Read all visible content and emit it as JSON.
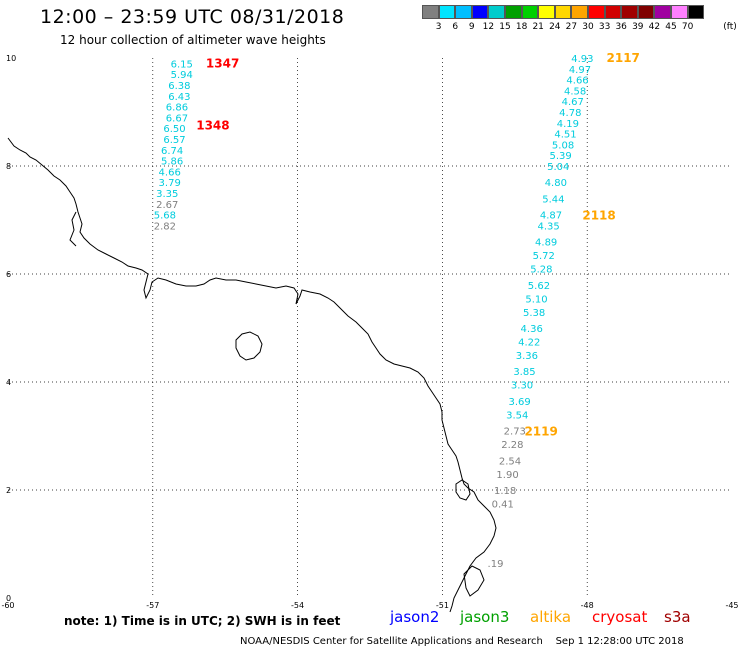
{
  "header": {
    "title": "12:00 – 23:59 UTC 08/31/2018",
    "subtitle": "12 hour collection of altimeter wave heights"
  },
  "colorbar": {
    "labels": [
      "3",
      "6",
      "9",
      "12",
      "15",
      "18",
      "21",
      "24",
      "27",
      "30",
      "33",
      "36",
      "39",
      "42",
      "45",
      "70"
    ],
    "unit": "(ft)",
    "colors": [
      "#808080",
      "#00e5ff",
      "#00bfff",
      "#0000ff",
      "#00cccc",
      "#00a000",
      "#00d000",
      "#ffff00",
      "#ffd700",
      "#ffa500",
      "#ff0000",
      "#d00000",
      "#a00000",
      "#800000",
      "#a000a0",
      "#ff80ff",
      "#000000"
    ]
  },
  "map": {
    "lon_ticks": [
      "-60",
      "-57",
      "-54",
      "-51",
      "-48",
      "-45"
    ],
    "lat_ticks": [
      "0",
      "2",
      "4",
      "6",
      "8",
      "10"
    ],
    "lon_range": [
      -60,
      -45
    ],
    "lat_range": [
      0,
      10
    ]
  },
  "tracks": [
    {
      "labels": [
        {
          "text": "1347",
          "lon": -55.9,
          "lat": 9.9
        },
        {
          "text": "1348",
          "lon": -56.1,
          "lat": 8.75
        }
      ],
      "label_color": "#ff0000",
      "points": [
        {
          "v": "6.15",
          "lon": -56.4,
          "lat": 9.9,
          "c": "#00ccdd"
        },
        {
          "v": "5.94",
          "lon": -56.4,
          "lat": 9.7,
          "c": "#00ccdd"
        },
        {
          "v": "6.38",
          "lon": -56.45,
          "lat": 9.5,
          "c": "#00ccdd"
        },
        {
          "v": "6.43",
          "lon": -56.45,
          "lat": 9.3,
          "c": "#00ccdd"
        },
        {
          "v": "6.86",
          "lon": -56.5,
          "lat": 9.1,
          "c": "#00ccdd"
        },
        {
          "v": "6.67",
          "lon": -56.5,
          "lat": 8.9,
          "c": "#00ccdd"
        },
        {
          "v": "6.50",
          "lon": -56.55,
          "lat": 8.7,
          "c": "#00ccdd"
        },
        {
          "v": "6.57",
          "lon": -56.55,
          "lat": 8.5,
          "c": "#00ccdd"
        },
        {
          "v": "6.74",
          "lon": -56.6,
          "lat": 8.3,
          "c": "#00ccdd"
        },
        {
          "v": "5.86",
          "lon": -56.6,
          "lat": 8.1,
          "c": "#00ccdd"
        },
        {
          "v": "4.66",
          "lon": -56.65,
          "lat": 7.9,
          "c": "#00ccdd"
        },
        {
          "v": "3.79",
          "lon": -56.65,
          "lat": 7.7,
          "c": "#00ccdd"
        },
        {
          "v": "3.35",
          "lon": -56.7,
          "lat": 7.5,
          "c": "#00ccdd"
        },
        {
          "v": "2.67",
          "lon": -56.7,
          "lat": 7.3,
          "c": "#808080"
        },
        {
          "v": "5.68",
          "lon": -56.75,
          "lat": 7.1,
          "c": "#00ccdd"
        },
        {
          "v": "2.82",
          "lon": -56.75,
          "lat": 6.9,
          "c": "#808080"
        }
      ]
    },
    {
      "labels": [
        {
          "text": "2117",
          "lon": -47.6,
          "lat": 10.0
        },
        {
          "text": "2118",
          "lon": -48.1,
          "lat": 7.08
        },
        {
          "text": "2119",
          "lon": -49.3,
          "lat": 3.08
        }
      ],
      "label_color": "#ffa500",
      "points": [
        {
          "v": "4.93",
          "lon": -48.1,
          "lat": 10.0,
          "c": "#00ccdd"
        },
        {
          "v": "4.97",
          "lon": -48.15,
          "lat": 9.8,
          "c": "#00ccdd"
        },
        {
          "v": "4.66",
          "lon": -48.2,
          "lat": 9.6,
          "c": "#00ccdd"
        },
        {
          "v": "4.58",
          "lon": -48.25,
          "lat": 9.4,
          "c": "#00ccdd"
        },
        {
          "v": "4.67",
          "lon": -48.3,
          "lat": 9.2,
          "c": "#00ccdd"
        },
        {
          "v": "4.78",
          "lon": -48.35,
          "lat": 9.0,
          "c": "#00ccdd"
        },
        {
          "v": "4.19",
          "lon": -48.4,
          "lat": 8.8,
          "c": "#00ccdd"
        },
        {
          "v": "4.51",
          "lon": -48.45,
          "lat": 8.6,
          "c": "#00ccdd"
        },
        {
          "v": "5.08",
          "lon": -48.5,
          "lat": 8.4,
          "c": "#00ccdd"
        },
        {
          "v": "5.39",
          "lon": -48.55,
          "lat": 8.2,
          "c": "#00ccdd"
        },
        {
          "v": "5.04",
          "lon": -48.6,
          "lat": 8.0,
          "c": "#00ccdd"
        },
        {
          "v": "4.80",
          "lon": -48.65,
          "lat": 7.7,
          "c": "#00ccdd"
        },
        {
          "v": "5.44",
          "lon": -48.7,
          "lat": 7.4,
          "c": "#00ccdd"
        },
        {
          "v": "4.87",
          "lon": -48.75,
          "lat": 7.1,
          "c": "#00ccdd"
        },
        {
          "v": "4.35",
          "lon": -48.8,
          "lat": 6.9,
          "c": "#00ccdd"
        },
        {
          "v": "4.89",
          "lon": -48.85,
          "lat": 6.6,
          "c": "#00ccdd"
        },
        {
          "v": "5.72",
          "lon": -48.9,
          "lat": 6.35,
          "c": "#00ccdd"
        },
        {
          "v": "5.28",
          "lon": -48.95,
          "lat": 6.1,
          "c": "#00ccdd"
        },
        {
          "v": "5.62",
          "lon": -49.0,
          "lat": 5.8,
          "c": "#00ccdd"
        },
        {
          "v": "5.10",
          "lon": -49.05,
          "lat": 5.55,
          "c": "#00ccdd"
        },
        {
          "v": "5.38",
          "lon": -49.1,
          "lat": 5.3,
          "c": "#00ccdd"
        },
        {
          "v": "4.36",
          "lon": -49.15,
          "lat": 5.0,
          "c": "#00ccdd"
        },
        {
          "v": "4.22",
          "lon": -49.2,
          "lat": 4.75,
          "c": "#00ccdd"
        },
        {
          "v": "3.36",
          "lon": -49.25,
          "lat": 4.5,
          "c": "#00ccdd"
        },
        {
          "v": "3.85",
          "lon": -49.3,
          "lat": 4.2,
          "c": "#00ccdd"
        },
        {
          "v": "3.30",
          "lon": -49.35,
          "lat": 3.95,
          "c": "#00ccdd"
        },
        {
          "v": "3.69",
          "lon": -49.4,
          "lat": 3.65,
          "c": "#00ccdd"
        },
        {
          "v": "3.54",
          "lon": -49.45,
          "lat": 3.4,
          "c": "#00ccdd"
        },
        {
          "v": "2.73",
          "lon": -49.5,
          "lat": 3.1,
          "c": "#808080"
        },
        {
          "v": "2.28",
          "lon": -49.55,
          "lat": 2.85,
          "c": "#808080"
        },
        {
          "v": "2.54",
          "lon": -49.6,
          "lat": 2.55,
          "c": "#808080"
        },
        {
          "v": "1.90",
          "lon": -49.65,
          "lat": 2.3,
          "c": "#808080"
        },
        {
          "v": "1.18",
          "lon": -49.7,
          "lat": 2.0,
          "c": "#808080"
        },
        {
          "v": "0.41",
          "lon": -49.75,
          "lat": 1.75,
          "c": "#808080"
        },
        {
          "v": ".19",
          "lon": -49.9,
          "lat": 0.65,
          "c": "#808080"
        }
      ]
    }
  ],
  "note": "note:  1) Time is in UTC;  2) SWH is in feet",
  "legend": [
    {
      "name": "jason2",
      "color": "#0000ff"
    },
    {
      "name": "jason3",
      "color": "#00a000"
    },
    {
      "name": "altika",
      "color": "#ffa500"
    },
    {
      "name": "cryosat",
      "color": "#ff0000"
    },
    {
      "name": "s3a",
      "color": "#a00000"
    }
  ],
  "footer": {
    "credit": "NOAA/NESDIS Center for Satellite Applications and Research",
    "timestamp": "Sep  1 12:28:00 UTC 2018"
  }
}
